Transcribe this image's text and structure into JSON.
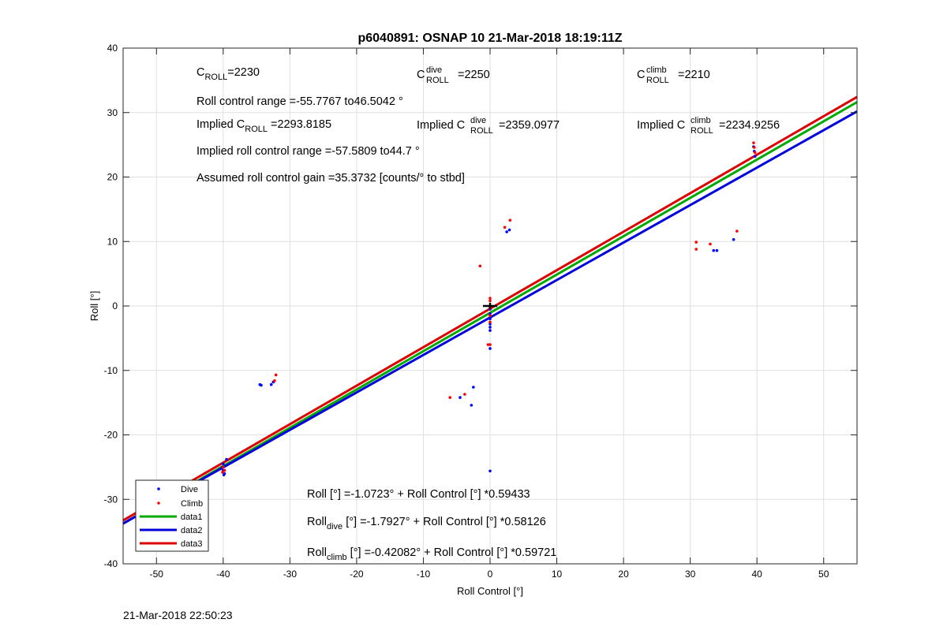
{
  "chart_data": {
    "type": "scatter",
    "title": "p6040891: OSNAP 10 21-Mar-2018 18:19:11Z",
    "xlabel": "Roll Control [°]",
    "ylabel": "Roll [°]",
    "xlim": [
      -55,
      55
    ],
    "ylim": [
      -40,
      40
    ],
    "xticks": [
      -50,
      -40,
      -30,
      -20,
      -10,
      0,
      10,
      20,
      30,
      40,
      50
    ],
    "yticks": [
      -40,
      -30,
      -20,
      -10,
      0,
      10,
      20,
      30,
      40
    ],
    "grid": true,
    "legend_position": "bottom-left",
    "colors": {
      "dive": "#0000ff",
      "climb": "#ff0000",
      "data1": "#00aa00",
      "data2": "#0000dd",
      "data3": "#dd0000",
      "center_marker": "#000000"
    },
    "series": [
      {
        "name": "Dive",
        "kind": "points",
        "x": [
          -40,
          -40,
          -39.8,
          -40.1,
          -39.9,
          -39.5,
          -34.5,
          -34.3,
          -32.8,
          -32.5,
          -4.5,
          -2.8,
          -2.5,
          0,
          0,
          0,
          0,
          0,
          0,
          0,
          0,
          2.5,
          2.9,
          33.5,
          34,
          36.5,
          39.5,
          39.6,
          39.7
        ],
        "y": [
          -24.5,
          -25.5,
          -26,
          -25,
          -26.2,
          -23.8,
          -12.2,
          -12.3,
          -12.2,
          -11.8,
          -14.2,
          -15.4,
          -12.6,
          -0.5,
          -1.2,
          -2,
          -2.8,
          -3.3,
          -3.8,
          -6.6,
          -25.6,
          11.5,
          11.8,
          8.6,
          8.6,
          10.3,
          24.7,
          24,
          23.2
        ]
      },
      {
        "name": "Climb",
        "kind": "points",
        "x": [
          -40,
          -39.8,
          -40.1,
          -32.3,
          -32.1,
          -6,
          -3.8,
          -1.5,
          -0.3,
          0,
          0,
          0,
          0,
          0,
          0,
          2.2,
          3,
          30.9,
          30.9,
          33,
          37,
          39.5,
          39.6,
          39.7
        ],
        "y": [
          -25,
          -25.5,
          -25.8,
          -11.6,
          -10.7,
          -14.2,
          -13.7,
          6.2,
          -6,
          -6,
          0.8,
          1.2,
          -0.3,
          -1.5,
          -2.5,
          12.2,
          13.3,
          9.9,
          8.8,
          9.6,
          11.6,
          25.3,
          24.6,
          23.8
        ]
      },
      {
        "name": "data1",
        "kind": "line",
        "x": [
          -55,
          55
        ],
        "y": [
          -33.76,
          31.62
        ]
      },
      {
        "name": "data2",
        "kind": "line",
        "x": [
          -55,
          55
        ],
        "y": [
          -33.76,
          30.18
        ]
      },
      {
        "name": "data3",
        "kind": "line",
        "x": [
          -55,
          55
        ],
        "y": [
          -33.27,
          32.42
        ]
      }
    ],
    "center_marker": {
      "x": 0,
      "y": 0
    },
    "annotations": {
      "c_roll": {
        "base": "C",
        "sub": "ROLL",
        "rest": "=2230"
      },
      "c_roll_dive": {
        "base": "C",
        "sup": "dive",
        "sub": "ROLL",
        "rest": "=2250"
      },
      "c_roll_climb": {
        "base": "C",
        "sup": "climb",
        "sub": "ROLL",
        "rest": "=2210"
      },
      "roll_control_range": "Roll control range =-55.7767 to46.5042 °",
      "implied_c_roll": {
        "prefix": "Implied C",
        "sub": "ROLL",
        "rest": " =2293.8185"
      },
      "implied_c_roll_dive": {
        "prefix": "Implied C",
        "sup": "dive",
        "sub": "ROLL",
        "rest": "=2359.0977"
      },
      "implied_c_roll_climb": {
        "prefix": "Implied C",
        "sup": "climb",
        "sub": "ROLL",
        "rest": "=2234.9256"
      },
      "implied_range": "Implied roll control range =-57.5809 to44.7 °",
      "assumed_gain": "Assumed roll control gain =35.3732 [counts/° to stbd]",
      "fit_all": "Roll [°] =-1.0723° + Roll Control [°] *0.59433",
      "fit_dive": {
        "base": "Roll",
        "sub": "dive",
        "rest": " [°] =-1.7927° + Roll Control [°] *0.58126"
      },
      "fit_climb": {
        "base": "Roll",
        "sub": "climb",
        "rest": " [°] =-0.42082° + Roll Control [°] *0.59721"
      }
    }
  },
  "footer_timestamp": "21-Mar-2018 22:50:23"
}
